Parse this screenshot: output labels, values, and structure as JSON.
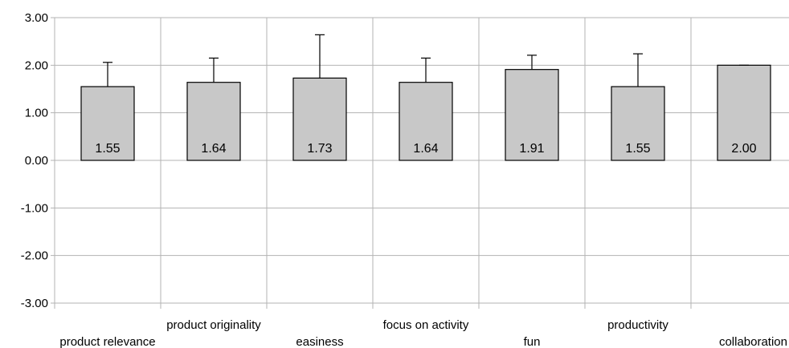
{
  "chart_data": {
    "type": "bar",
    "categories": [
      "product relevance",
      "product originality",
      "easiness",
      "focus on activity",
      "fun",
      "productivity",
      "collaboration"
    ],
    "values": [
      1.55,
      1.64,
      1.73,
      1.64,
      1.91,
      1.55,
      2.0
    ],
    "data_labels": [
      "1.55",
      "1.64",
      "1.73",
      "1.64",
      "1.91",
      "1.55",
      "2.00"
    ],
    "error_upper": [
      2.06,
      2.15,
      2.64,
      2.15,
      2.21,
      2.24,
      2.0
    ],
    "ylim": [
      -3,
      3
    ],
    "yticks": [
      3,
      2,
      1,
      0,
      -1,
      -2,
      -3
    ],
    "ytick_labels": [
      "3.00",
      "2.00",
      "1.00",
      "0.00",
      "-1.00",
      "-2.00",
      "-3.00"
    ],
    "grid": true,
    "title": "",
    "xlabel": "",
    "ylabel": "",
    "colors": {
      "bar_fill": "#c8c8c8",
      "bar_stroke": "#000000",
      "grid": "#b3b3b3",
      "axis": "#b3b3b3"
    }
  }
}
